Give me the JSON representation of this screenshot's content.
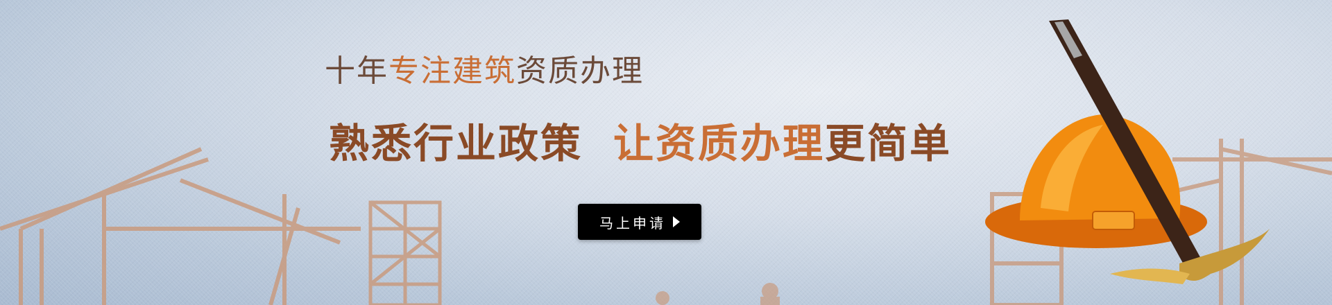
{
  "banner": {
    "tagline": {
      "part1": "十年",
      "part2": "专注建筑",
      "part3": "资质办理"
    },
    "headline": {
      "part1": "熟悉行业政策",
      "part2": "让资质办理",
      "part3": "更简单"
    },
    "apply_button": {
      "label": "马上申请",
      "icon": "arrow-right-icon"
    }
  },
  "colors": {
    "dark_text": "#6b4a39",
    "orange_text": "#c96e35",
    "brown_text": "#8a4a26",
    "button_bg": "#000000",
    "helmet": "#f28c0f",
    "silhouette": "#c99b7f"
  },
  "illustrations": [
    "construction-crane-icon",
    "scaffolding-icon",
    "safety-helmet-icon",
    "pickaxe-icon"
  ]
}
